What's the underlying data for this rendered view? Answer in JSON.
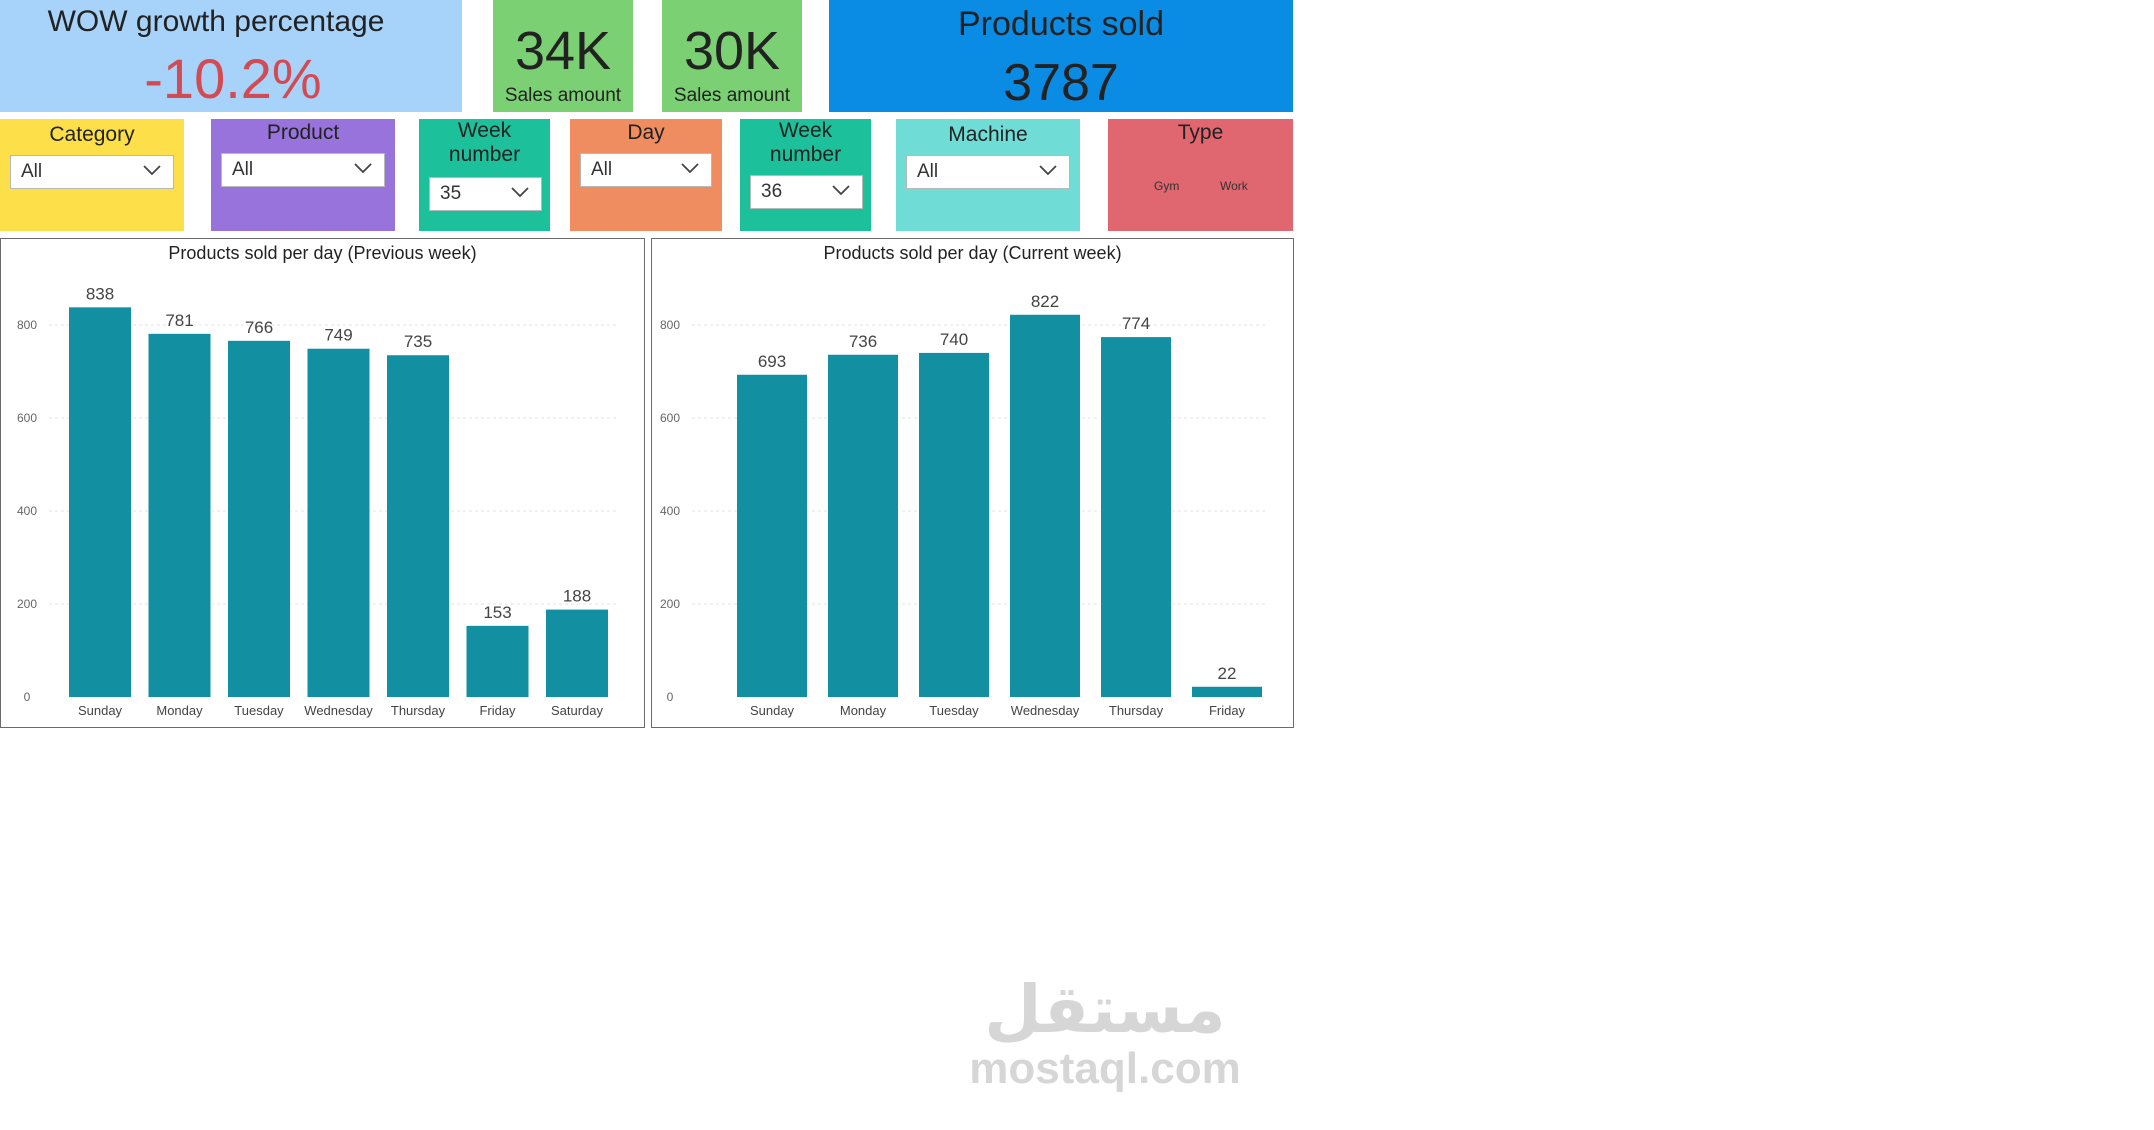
{
  "colors": {
    "wow_bg": "#a7d3fb",
    "wow_value": "#d24b52",
    "sales_bg": "#7bd073",
    "products_bg": "#0a8ce4",
    "category_bg": "#fddf4a",
    "product_bg": "#9873dc",
    "week_bg": "#1cc09a",
    "day_bg": "#ef8d61",
    "machine_bg": "#6fdcd5",
    "type_bg": "#e0666f",
    "bar": "#128fa0"
  },
  "kpis": {
    "wow": {
      "title": "WOW growth percentage",
      "value": "-10.2%"
    },
    "sales1": {
      "value": "34K",
      "label": "Sales amount"
    },
    "sales2": {
      "value": "30K",
      "label": "Sales amount"
    },
    "products": {
      "title": "Products sold",
      "value": "3787"
    }
  },
  "slicers": {
    "category": {
      "title": "Category",
      "value": "All"
    },
    "product": {
      "title": "Product",
      "value": "All"
    },
    "week1": {
      "title_line1": "Week",
      "title_line2": "number",
      "value": "35"
    },
    "day": {
      "title": "Day",
      "value": "All"
    },
    "week2": {
      "title_line1": "Week",
      "title_line2": "number",
      "value": "36"
    },
    "machine": {
      "title": "Machine",
      "value": "All"
    },
    "type": {
      "title": "Type",
      "options": [
        "Gym",
        "Work"
      ]
    }
  },
  "watermark": {
    "arabic": "مستقل",
    "latin": "mostaql.com"
  },
  "chart_data": [
    {
      "type": "bar",
      "title": "Products sold per day (Previous week)",
      "categories": [
        "Sunday",
        "Monday",
        "Tuesday",
        "Wednesday",
        "Thursday",
        "Friday",
        "Saturday"
      ],
      "values": [
        838,
        781,
        766,
        749,
        735,
        153,
        188
      ],
      "ylim": [
        0,
        900
      ],
      "yticks": [
        0,
        200,
        400,
        600,
        800
      ],
      "grid": true,
      "xlabel": "",
      "ylabel": ""
    },
    {
      "type": "bar",
      "title": "Products sold per day (Current week)",
      "categories": [
        "Sunday",
        "Monday",
        "Tuesday",
        "Wednesday",
        "Thursday",
        "Friday"
      ],
      "values": [
        693,
        736,
        740,
        822,
        774,
        22
      ],
      "ylim": [
        0,
        900
      ],
      "yticks": [
        0,
        200,
        400,
        600,
        800
      ],
      "grid": true,
      "xlabel": "",
      "ylabel": ""
    }
  ]
}
